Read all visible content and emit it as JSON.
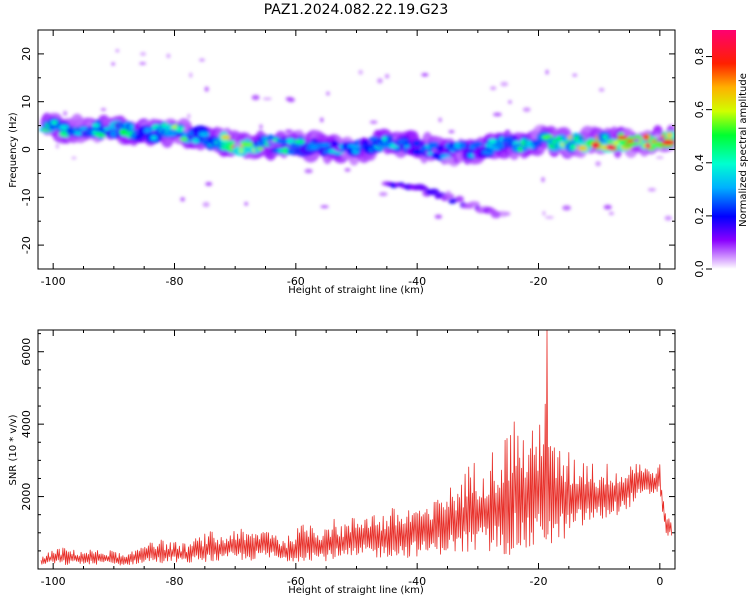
{
  "title": "PAZ1.2024.082.22.19.G23",
  "chart_data": [
    {
      "type": "heatmap",
      "xlabel": "Height of straight line (km)",
      "ylabel": "Frequency (Hz)",
      "xlim": [
        -102.5,
        2.5
      ],
      "ylim": [
        -25,
        25
      ],
      "xticks": [
        -100,
        -80,
        -60,
        -40,
        -20,
        0
      ],
      "yticks": [
        -20,
        -10,
        0,
        10,
        20
      ],
      "colorbar": {
        "label": "Normalized spectral amplitude",
        "range": [
          0,
          0.9
        ],
        "ticks": [
          0.0,
          0.2,
          0.4,
          0.6,
          0.8
        ],
        "colormap": "rainbow (white-violet-blue-cyan-green-yellow-red-magenta)"
      },
      "ridge": {
        "description": "main spectral ridge, frequency vs height",
        "x": [
          -101,
          -96,
          -90,
          -85,
          -80,
          -75,
          -70,
          -65,
          -60,
          -55,
          -50,
          -45,
          -40,
          -35,
          -30,
          -25,
          -20,
          -15,
          -10,
          -5,
          0,
          2
        ],
        "y": [
          5.0,
          4.0,
          4.5,
          3.5,
          4.0,
          2.5,
          1.0,
          1.0,
          0.8,
          0.5,
          0.0,
          1.5,
          0.5,
          -0.5,
          0.0,
          1.0,
          1.5,
          1.5,
          1.5,
          1.5,
          2.0,
          2.5
        ],
        "amplitude": [
          0.55,
          0.4,
          0.5,
          0.35,
          0.55,
          0.4,
          0.7,
          0.45,
          0.4,
          0.35,
          0.3,
          0.4,
          0.35,
          0.3,
          0.35,
          0.4,
          0.45,
          0.6,
          0.75,
          0.85,
          0.9,
          0.8
        ]
      },
      "secondary_branch": {
        "description": "weaker descending branch",
        "x": [
          -45,
          -40,
          -35,
          -30,
          -25
        ],
        "y": [
          -7,
          -8,
          -10,
          -12,
          -14
        ],
        "amplitude": [
          0.15,
          0.12,
          0.15,
          0.1,
          0.05
        ]
      }
    },
    {
      "type": "line",
      "xlabel": "Height of straight line (km)",
      "ylabel": "SNR (10 * v/v)",
      "xlim": [
        -102.5,
        2.5
      ],
      "ylim": [
        0,
        6600
      ],
      "xticks": [
        -100,
        -80,
        -60,
        -40,
        -20,
        0
      ],
      "yticks": [
        2000,
        4000,
        6000
      ],
      "color": "#e8302a",
      "series": [
        {
          "x": [
            -102,
            -100,
            -98,
            -96,
            -94,
            -92,
            -90,
            -88,
            -86,
            -84,
            -82,
            -80,
            -78,
            -76,
            -74,
            -72,
            -70,
            -68,
            -66,
            -64,
            -62,
            -60,
            -58,
            -56,
            -54,
            -52,
            -50,
            -48,
            -46,
            -44,
            -42,
            -40,
            -38,
            -36,
            -34,
            -32,
            -30,
            -28,
            -26,
            -24,
            -22,
            -20,
            -19,
            -18,
            -16,
            -14,
            -12,
            -10,
            -8,
            -6,
            -4,
            -2,
            0,
            1,
            2
          ],
          "upper": [
            300,
            550,
            600,
            500,
            550,
            500,
            520,
            350,
            600,
            900,
            800,
            750,
            700,
            900,
            1050,
            900,
            1200,
            1000,
            1100,
            1200,
            800,
            1100,
            1350,
            1200,
            1400,
            1300,
            1500,
            1700,
            1500,
            1700,
            1650,
            1900,
            1600,
            2300,
            2300,
            2800,
            3100,
            3300,
            3500,
            4300,
            3700,
            4000,
            5700,
            3500,
            3400,
            3100,
            3200,
            2800,
            3000,
            2700,
            3200,
            2800,
            2900,
            1500,
            1300
          ],
          "lower": [
            100,
            150,
            100,
            150,
            100,
            150,
            100,
            100,
            150,
            150,
            150,
            200,
            150,
            200,
            200,
            200,
            250,
            200,
            300,
            250,
            200,
            200,
            250,
            200,
            250,
            250,
            250,
            300,
            300,
            350,
            300,
            350,
            400,
            400,
            450,
            400,
            350,
            400,
            350,
            400,
            450,
            500,
            700,
            500,
            800,
            1000,
            1200,
            1300,
            1400,
            1600,
            1800,
            2000,
            2100,
            900,
            900
          ]
        }
      ]
    }
  ]
}
